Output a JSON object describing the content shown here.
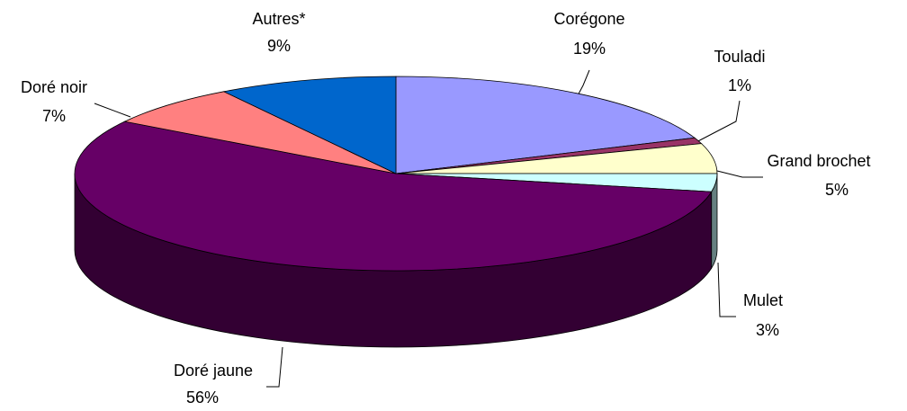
{
  "chart_data": {
    "type": "pie3d",
    "categories": [
      "Corégone",
      "Touladi",
      "Grand brochet",
      "Mulet",
      "Doré jaune",
      "Doré noir",
      "Autres*"
    ],
    "values": [
      19,
      1,
      5,
      3,
      56,
      7,
      9
    ],
    "value_labels": [
      "19%",
      "1%",
      "5%",
      "3%",
      "56%",
      "7%",
      "9%"
    ],
    "colors": [
      "#9999ff",
      "#993366",
      "#ffffcc",
      "#ccffff",
      "#660066",
      "#ff8080",
      "#0066cc"
    ]
  }
}
